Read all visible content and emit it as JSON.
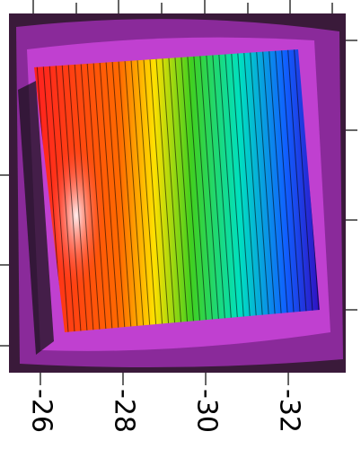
{
  "chart_data": {
    "type": "contour",
    "xlim": [
      -25.24,
      -33.39
    ],
    "xticks": [
      -26,
      -28,
      -30,
      -32
    ]
  }
}
